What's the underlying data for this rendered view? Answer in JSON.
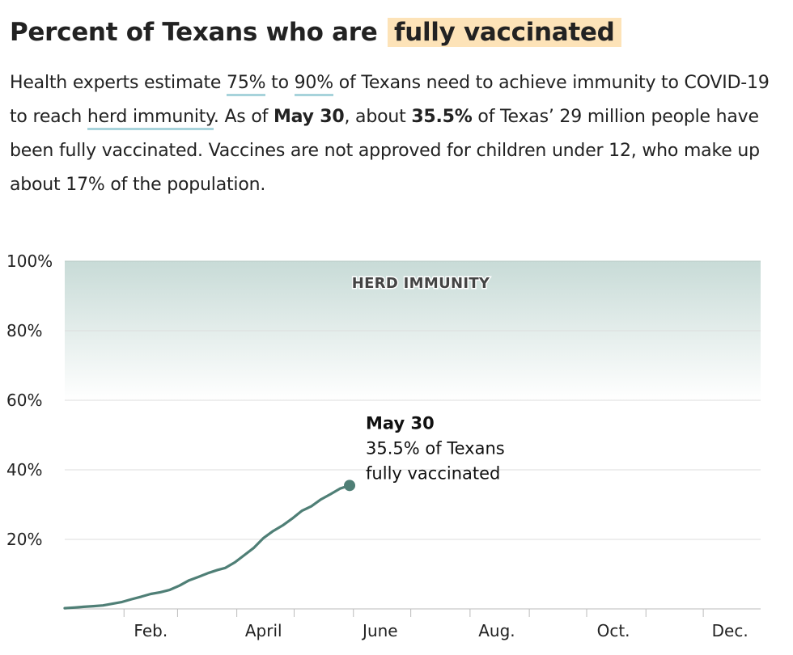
{
  "header": {
    "title_prefix": "Percent of Texans who are",
    "title_highlight": "fully vaccinated"
  },
  "lede": {
    "p1": "Health experts estimate ",
    "low": "75%",
    "p2": " to ",
    "high": "90%",
    "p3": " of Texans need to achieve immunity to COVID-19 to reach ",
    "herd": "herd immunity",
    "p4": ". As of ",
    "date": "May 30",
    "p5": ", about ",
    "pct": "35.5%",
    "p6": " of Texas’ 29 million people have been fully vaccinated. Vaccines are not approved for children under 12, who make up about 17% of the population."
  },
  "colors": {
    "line": "#4f7f76",
    "band_top": "#c8dbd7",
    "grid": "#dddddd",
    "highlight": "#fde3b8",
    "underline": "#a7d3db"
  },
  "chart_data": {
    "type": "line",
    "y_ticks": [
      "100%",
      "80%",
      "60%",
      "40%",
      "20%"
    ],
    "y_tick_values": [
      100,
      80,
      60,
      40,
      20
    ],
    "ylim": [
      0,
      100
    ],
    "x_ticks": [
      "Feb.",
      "April",
      "June",
      "Aug.",
      "Oct.",
      "Dec."
    ],
    "x_tick_dates": [
      "2021-02-15",
      "2021-04-15",
      "2021-06-15",
      "2021-08-15",
      "2021-10-15",
      "2021-12-15"
    ],
    "xlim": [
      "2021-01-01",
      "2021-12-31"
    ],
    "band": {
      "label": "HERD IMMUNITY",
      "from": 60,
      "to": 100
    },
    "series": [
      {
        "points": [
          [
            "2021-01-01",
            0.2
          ],
          [
            "2021-01-06",
            0.4
          ],
          [
            "2021-01-11",
            0.6
          ],
          [
            "2021-01-16",
            0.8
          ],
          [
            "2021-01-21",
            1.0
          ],
          [
            "2021-01-26",
            1.5
          ],
          [
            "2021-01-31",
            2.0
          ],
          [
            "2021-02-05",
            2.8
          ],
          [
            "2021-02-10",
            3.5
          ],
          [
            "2021-02-15",
            4.3
          ],
          [
            "2021-02-20",
            4.8
          ],
          [
            "2021-02-25",
            5.5
          ],
          [
            "2021-03-02",
            6.7
          ],
          [
            "2021-03-07",
            8.2
          ],
          [
            "2021-03-12",
            9.2
          ],
          [
            "2021-03-17",
            10.3
          ],
          [
            "2021-03-22",
            11.2
          ],
          [
            "2021-03-26",
            11.8
          ],
          [
            "2021-03-31",
            13.4
          ],
          [
            "2021-04-05",
            15.5
          ],
          [
            "2021-04-10",
            17.6
          ],
          [
            "2021-04-15",
            20.4
          ],
          [
            "2021-04-20",
            22.4
          ],
          [
            "2021-04-25",
            24.0
          ],
          [
            "2021-04-30",
            26.0
          ],
          [
            "2021-05-05",
            28.2
          ],
          [
            "2021-05-10",
            29.5
          ],
          [
            "2021-05-15",
            31.5
          ],
          [
            "2021-05-20",
            33.0
          ],
          [
            "2021-05-25",
            34.6
          ],
          [
            "2021-05-30",
            35.5
          ]
        ]
      }
    ],
    "annotation": {
      "date": "2021-05-30",
      "value": 35.5,
      "label_bold": "May 30",
      "label_line1": "35.5% of Texans",
      "label_line2": "fully vaccinated"
    }
  }
}
